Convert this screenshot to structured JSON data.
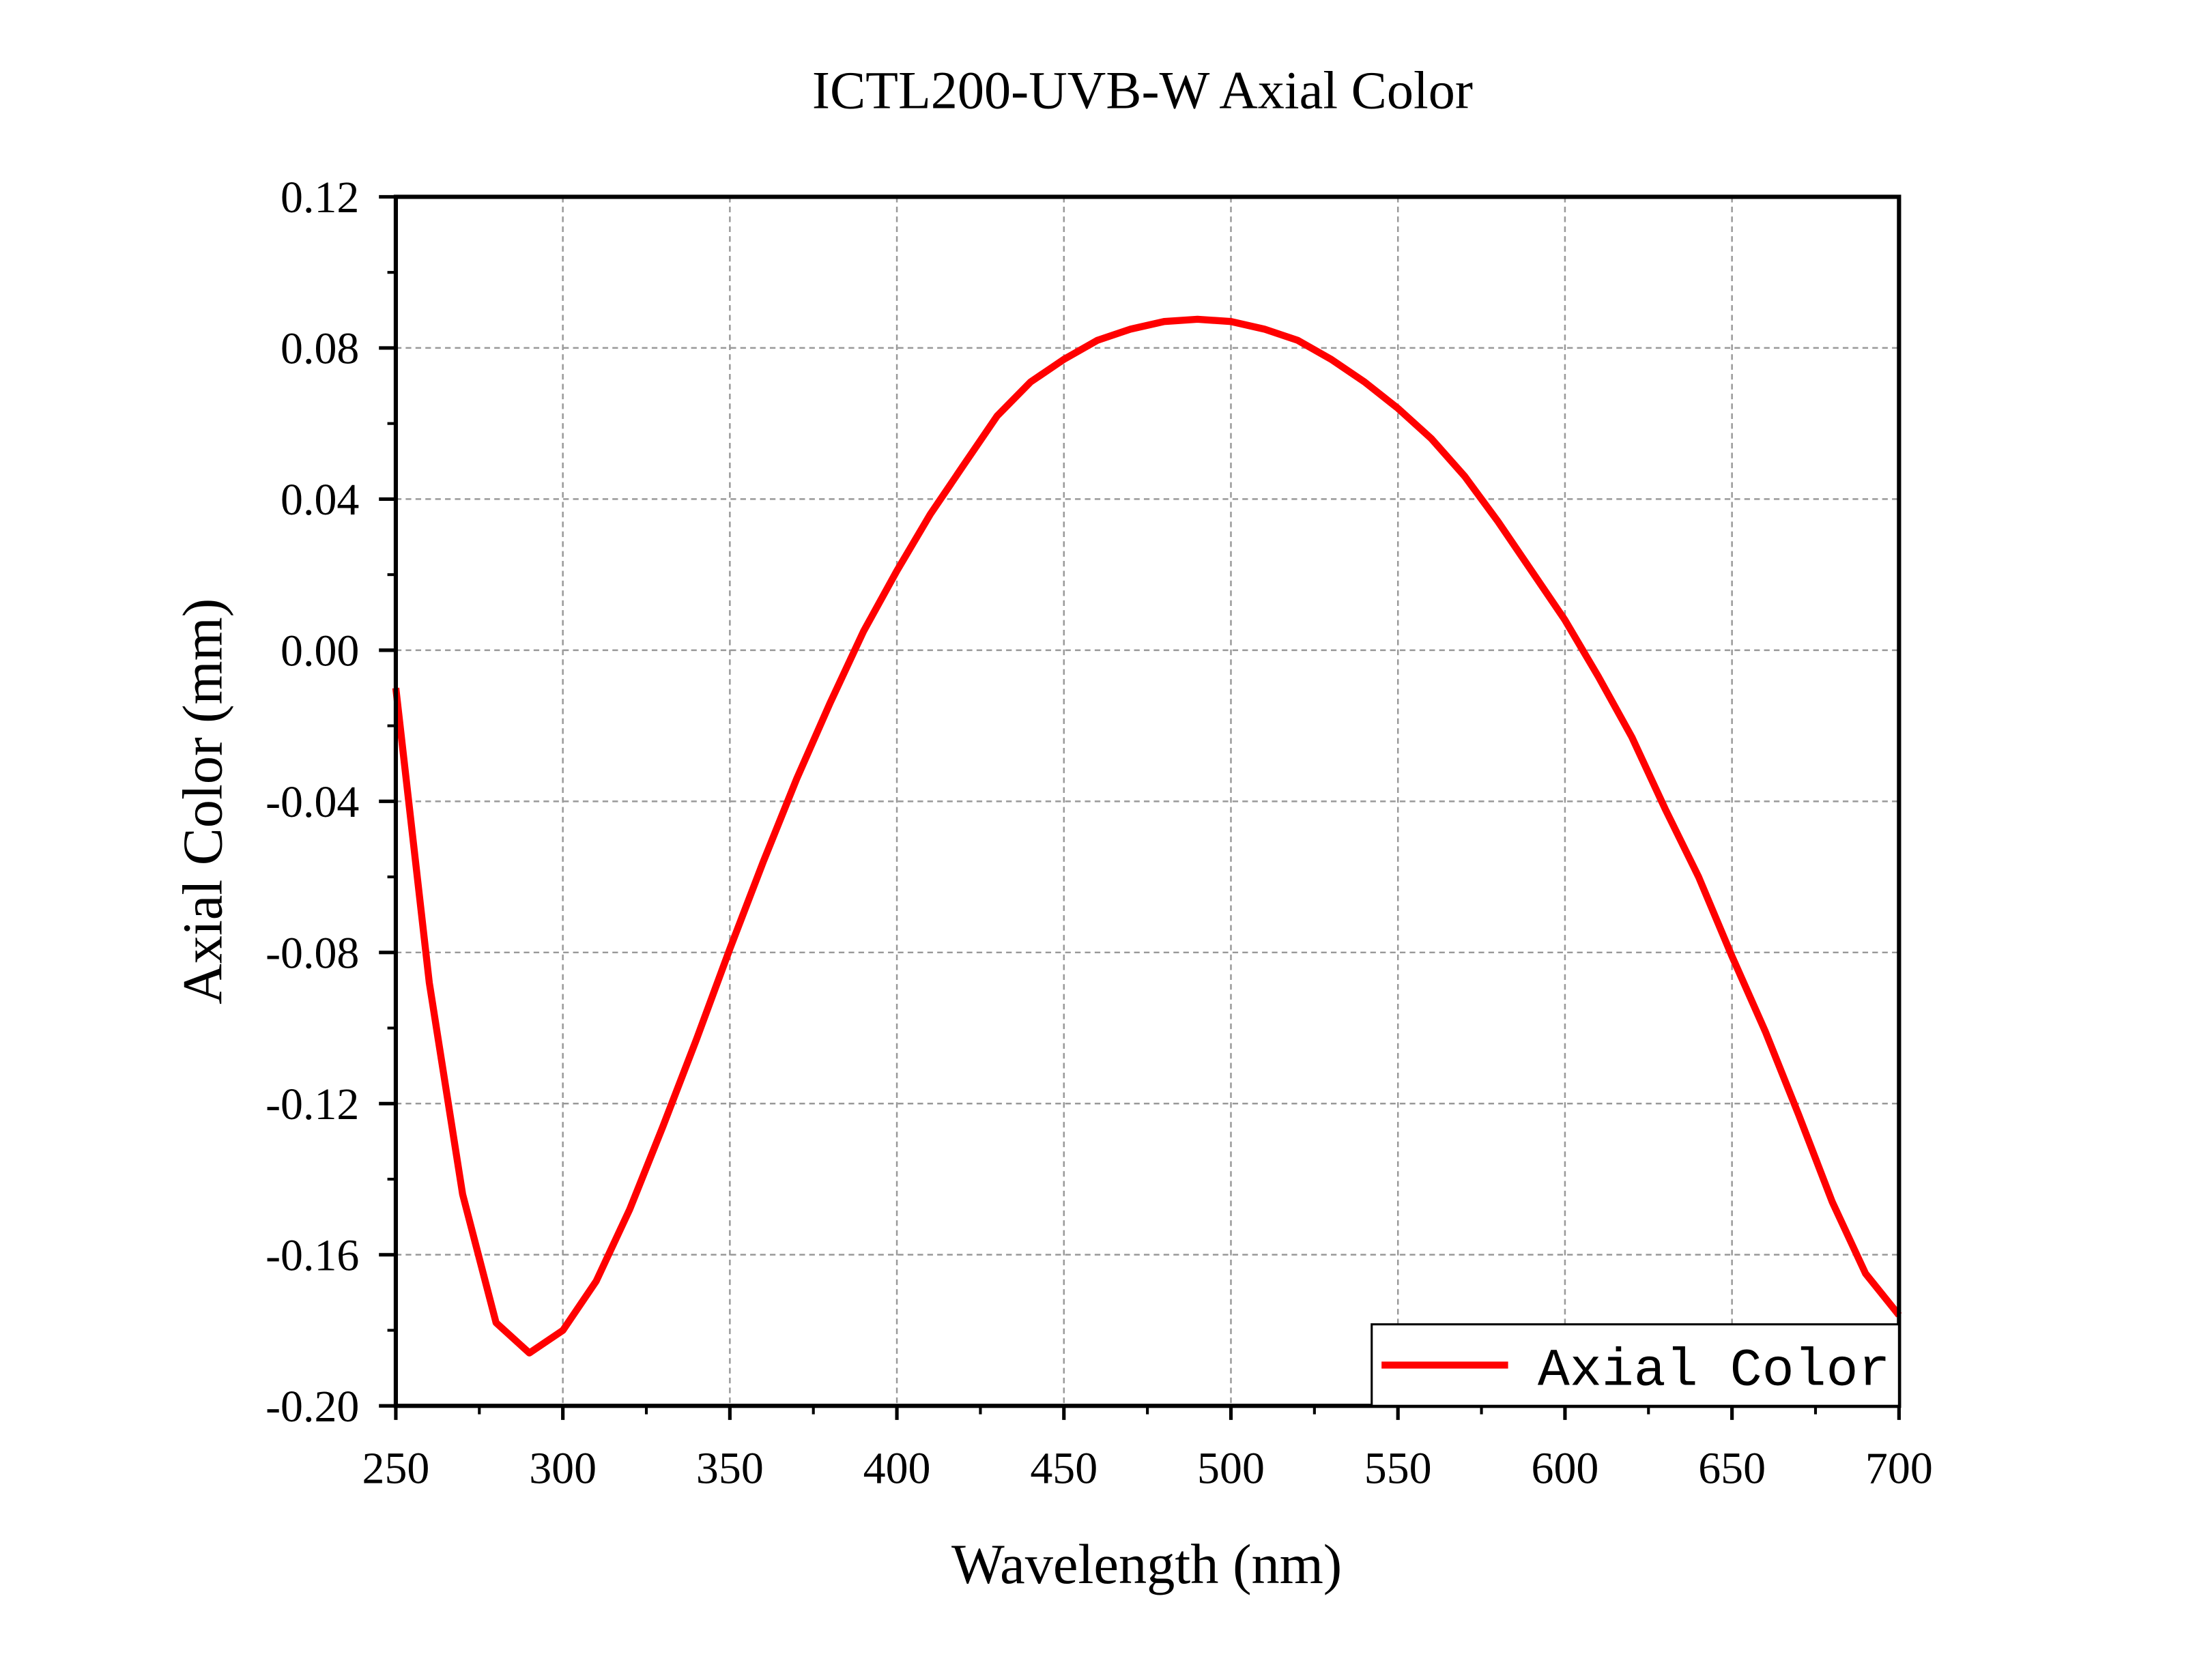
{
  "chart_data": {
    "type": "line",
    "title": "ICTL200-UVB-W Axial Color",
    "xlabel": "Wavelength (nm)",
    "ylabel": "Axial Color (mm)",
    "xlim": [
      250,
      700
    ],
    "ylim": [
      -0.2,
      0.12
    ],
    "xticks": [
      250,
      300,
      350,
      400,
      450,
      500,
      550,
      600,
      650,
      700
    ],
    "xtick_labels": [
      "250",
      "300",
      "350",
      "400",
      "450",
      "500",
      "550",
      "600",
      "650",
      "700"
    ],
    "yticks": [
      -0.2,
      -0.16,
      -0.12,
      -0.08,
      -0.04,
      0.0,
      0.04,
      0.08,
      0.12
    ],
    "ytick_labels": [
      "-0.20",
      "-0.16",
      "-0.12",
      "-0.08",
      "-0.04",
      "0.00",
      "0.04",
      "0.08",
      "0.12"
    ],
    "grid": true,
    "legend_position": "bottom-right",
    "series": [
      {
        "name": "Axial Color",
        "color": "#ff0000",
        "x": [
          250,
          260,
          270,
          280,
          290,
          300,
          310,
          320,
          330,
          340,
          350,
          360,
          370,
          380,
          390,
          400,
          410,
          420,
          430,
          440,
          450,
          460,
          470,
          480,
          490,
          500,
          510,
          520,
          530,
          540,
          550,
          560,
          570,
          580,
          590,
          600,
          610,
          620,
          630,
          640,
          650,
          660,
          670,
          680,
          690,
          700
        ],
        "y": [
          -0.01,
          -0.088,
          -0.144,
          -0.178,
          -0.186,
          -0.18,
          -0.167,
          -0.148,
          -0.126,
          -0.103,
          -0.079,
          -0.056,
          -0.034,
          -0.014,
          0.005,
          0.021,
          0.036,
          0.049,
          0.062,
          0.071,
          0.077,
          0.082,
          0.085,
          0.087,
          0.0876,
          0.087,
          0.085,
          0.082,
          0.077,
          0.071,
          0.064,
          0.056,
          0.046,
          0.034,
          0.021,
          0.008,
          -0.007,
          -0.023,
          -0.042,
          -0.06,
          -0.081,
          -0.101,
          -0.123,
          -0.146,
          -0.165,
          -0.176
        ]
      }
    ]
  }
}
